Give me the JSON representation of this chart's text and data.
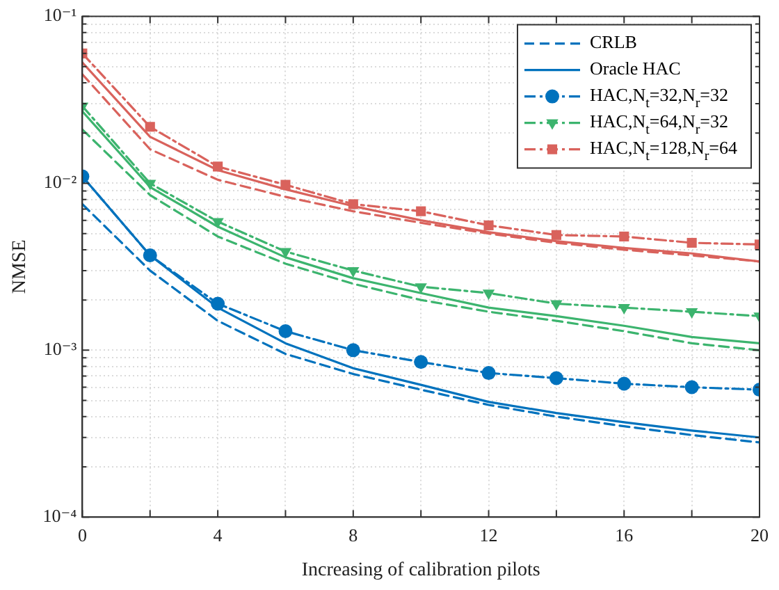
{
  "chart_data": {
    "type": "line",
    "xlabel": "Increasing of calibration pilots",
    "ylabel": "NMSE",
    "log": "y",
    "grid": true,
    "legend": "top right",
    "x": [
      0,
      2,
      4,
      6,
      8,
      10,
      12,
      14,
      16,
      18,
      20
    ],
    "xlim": [
      0,
      20
    ],
    "xticks": [
      0,
      {
        "value": 2,
        "label": null
      },
      4,
      {
        "value": 6,
        "label": null
      },
      8,
      {
        "value": 10,
        "label": null
      },
      12,
      {
        "value": 14,
        "label": null
      },
      16,
      {
        "value": 18,
        "label": null
      },
      20
    ],
    "ylim": [
      0.0001,
      0.1
    ],
    "yticks": [
      {
        "value": 0.0001,
        "label": "10⁻⁴"
      },
      {
        "value": 0.0002,
        "label": null
      },
      {
        "value": 0.0003,
        "label": null
      },
      {
        "value": 0.0004,
        "label": null
      },
      {
        "value": 0.0005,
        "label": null
      },
      {
        "value": 0.0006,
        "label": null
      },
      {
        "value": 0.0007,
        "label": null
      },
      {
        "value": 0.0008,
        "label": null
      },
      {
        "value": 0.0009,
        "label": null
      },
      {
        "value": 0.001,
        "label": "10⁻³"
      },
      {
        "value": 0.002,
        "label": null
      },
      {
        "value": 0.003,
        "label": null
      },
      {
        "value": 0.004,
        "label": null
      },
      {
        "value": 0.005,
        "label": null
      },
      {
        "value": 0.006,
        "label": null
      },
      {
        "value": 0.007,
        "label": null
      },
      {
        "value": 0.008,
        "label": null
      },
      {
        "value": 0.009,
        "label": null
      },
      {
        "value": 0.01,
        "label": "10⁻²"
      },
      {
        "value": 0.02,
        "label": null
      },
      {
        "value": 0.03,
        "label": null
      },
      {
        "value": 0.04,
        "label": null
      },
      {
        "value": 0.05,
        "label": null
      },
      {
        "value": 0.06,
        "label": null
      },
      {
        "value": 0.07,
        "label": null
      },
      {
        "value": 0.08,
        "label": null
      },
      {
        "value": 0.09,
        "label": null
      },
      {
        "value": 0.1,
        "label": "10⁻¹"
      }
    ],
    "series": [
      {
        "name": "CRLB",
        "color": "#0072bd",
        "line_style": "dashed",
        "marker": "none",
        "values": [
          0.0075,
          0.003,
          0.0015,
          0.00095,
          0.00072,
          0.00058,
          0.00047,
          0.0004,
          0.00035,
          0.00031,
          0.00028
        ]
      },
      {
        "name": "Oracle HAC",
        "color": "#0072bd",
        "line_style": "solid",
        "marker": "none",
        "values": [
          0.011,
          0.0037,
          0.0018,
          0.0011,
          0.00078,
          0.00062,
          0.00049,
          0.00042,
          0.00037,
          0.00033,
          0.0003
        ]
      },
      {
        "name": "HAC,N$_{t}$=32,N$_{r}$=32",
        "color": "#0072bd",
        "line_style": "dashdot",
        "marker": "circle",
        "values": [
          0.011,
          0.0037,
          0.0019,
          0.0013,
          0.001,
          0.00085,
          0.00073,
          0.00068,
          0.00063,
          0.0006,
          0.00058
        ]
      },
      {
        "name": "HAC,N$_{t}$=64,N$_{r}$=32",
        "color": "#3cb46e",
        "line_style": "dashdot",
        "marker": "triangle",
        "values": [
          0.029,
          0.01,
          0.0059,
          0.0039,
          0.003,
          0.0024,
          0.0022,
          0.0019,
          0.0018,
          0.0017,
          0.0016
        ]
      },
      {
        "name": "HAC,N$_{t}$=128,N$_{r}$=64",
        "color": "#d9625c",
        "line_style": "dashdot",
        "marker": "square",
        "values": [
          0.06,
          0.0218,
          0.0126,
          0.0098,
          0.0075,
          0.0068,
          0.0056,
          0.0049,
          0.0048,
          0.0044,
          0.0043
        ]
      },
      {
        "color": "#3cb46e",
        "line_style": "solid",
        "marker": "none",
        "values": [
          0.027,
          0.0095,
          0.0055,
          0.0036,
          0.0027,
          0.0022,
          0.0018,
          0.0016,
          0.0014,
          0.0012,
          0.0011
        ]
      },
      {
        "color": "#3cb46e",
        "line_style": "dashed",
        "marker": "none",
        "values": [
          0.021,
          0.0085,
          0.0048,
          0.0033,
          0.0025,
          0.002,
          0.0017,
          0.0015,
          0.0013,
          0.0011,
          0.001
        ]
      },
      {
        "color": "#d9625c",
        "line_style": "solid",
        "marker": "none",
        "values": [
          0.053,
          0.019,
          0.012,
          0.0092,
          0.0073,
          0.006,
          0.0051,
          0.0045,
          0.0041,
          0.0038,
          0.0034
        ]
      },
      {
        "color": "#d9625c",
        "line_style": "dashed",
        "marker": "none",
        "values": [
          0.045,
          0.016,
          0.0105,
          0.0083,
          0.0068,
          0.0058,
          0.005,
          0.0044,
          0.004,
          0.0037,
          0.0034
        ]
      }
    ]
  }
}
